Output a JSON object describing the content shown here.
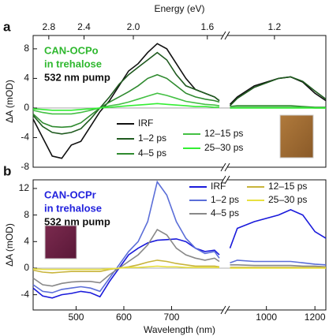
{
  "chart_data": [
    {
      "type": "line",
      "panel_label": "a",
      "x2label": "Energy (eV)",
      "x2ticks": [
        2.8,
        2.4,
        {
          "value": 2.0,
          "label": "2.0"
        },
        1.6,
        1.2
      ],
      "ylabel": "ΔA (mOD)",
      "xsegments": [
        [
          410,
          805
        ],
        [
          845,
          1245
        ]
      ],
      "ylim": [
        -8,
        9.8
      ],
      "yticks": [
        -8,
        -4,
        0,
        4,
        8
      ],
      "zero_line": true,
      "legend": "lower center",
      "annotations": [
        {
          "text": "CAN-OCPo",
          "color": "#2fb82f"
        },
        {
          "text": "in trehalose",
          "color": "#2fb82f"
        },
        {
          "text": "532 nm pump",
          "color": "#111111"
        }
      ],
      "x": [
        410,
        430,
        450,
        470,
        490,
        510,
        530,
        550,
        570,
        590,
        610,
        630,
        650,
        670,
        690,
        710,
        730,
        750,
        770,
        790,
        800,
        825,
        850,
        880,
        950,
        1050,
        1100,
        1150,
        1200,
        1245
      ],
      "series": [
        {
          "name": "IRF",
          "color": "#111111",
          "values": [
            -1.5,
            -4,
            -6.5,
            -6.8,
            -5,
            -4.5,
            -2.5,
            -0.5,
            1,
            3,
            5,
            6,
            7.5,
            8.7,
            8,
            6,
            4,
            2.5,
            2,
            1.5,
            1,
            null,
            0.5,
            1.5,
            3,
            4,
            4.2,
            3.5,
            2,
            1
          ]
        },
        {
          "name": "1–2 ps",
          "color": "#1f5a1f",
          "values": [
            -1,
            -2.5,
            -3.3,
            -3.5,
            -3.3,
            -2.8,
            -1.5,
            0,
            1.5,
            3.2,
            4.5,
            5.5,
            6.5,
            7.5,
            6.5,
            4.5,
            3,
            2.5,
            2,
            1.5,
            1,
            null,
            0.3,
            1.3,
            2.8,
            4,
            4.2,
            3.6,
            2.3,
            1.2
          ]
        },
        {
          "name": "4–5 ps",
          "color": "#2f8a2f",
          "values": [
            -0.8,
            -2,
            -2.5,
            -2.6,
            -2.5,
            -2,
            -1,
            0,
            0.8,
            1.5,
            2.2,
            3,
            4,
            4.5,
            4,
            3,
            2,
            1.5,
            1.2,
            1,
            0.8,
            null,
            0.2,
            0.3,
            0.3,
            0.3,
            0.3,
            0.2,
            0.1,
            0.1
          ]
        },
        {
          "name": "12–15 ps",
          "color": "#44c044",
          "values": [
            -0.3,
            -0.6,
            -0.8,
            -0.8,
            -0.8,
            -0.6,
            -0.3,
            0,
            0.3,
            0.5,
            0.8,
            1.2,
            1.6,
            2,
            1.7,
            1.3,
            0.9,
            0.7,
            0.5,
            0.4,
            0.3,
            null,
            0,
            0.1,
            0.1,
            0.1,
            0.1,
            0.1,
            0,
            0
          ]
        },
        {
          "name": "25–30 ps",
          "color": "#33ee33",
          "values": [
            -0.1,
            -0.2,
            -0.3,
            -0.3,
            -0.3,
            -0.2,
            -0.1,
            0,
            0.1,
            0.2,
            0.3,
            0.4,
            0.5,
            0.6,
            0.5,
            0.4,
            0.3,
            0.2,
            0.2,
            0.1,
            0.1,
            null,
            0,
            0,
            0,
            0,
            0,
            0,
            0,
            0
          ]
        }
      ]
    },
    {
      "type": "line",
      "panel_label": "b",
      "xlabel": "Wavelength (nm)",
      "xticks": [
        500,
        600,
        700,
        1000,
        1200
      ],
      "ylabel": "ΔA (mOD)",
      "xsegments": [
        [
          410,
          805
        ],
        [
          845,
          1245
        ]
      ],
      "ylim": [
        -6.3,
        13.3
      ],
      "yticks": [
        -4,
        0,
        4,
        8,
        12
      ],
      "zero_line": true,
      "legend": "upper right",
      "annotations": [
        {
          "text": "CAN-OCPr",
          "color": "#2222dd"
        },
        {
          "text": "in trehalose",
          "color": "#2222dd"
        },
        {
          "text": "532 nm pump",
          "color": "#111111"
        }
      ],
      "x": [
        410,
        430,
        450,
        470,
        490,
        510,
        530,
        550,
        570,
        590,
        610,
        630,
        650,
        670,
        690,
        710,
        730,
        750,
        770,
        790,
        800,
        825,
        850,
        880,
        950,
        1050,
        1100,
        1150,
        1200,
        1245
      ],
      "series": [
        {
          "name": "IRF",
          "color": "#1a1adb",
          "values": [
            -3,
            -4.2,
            -4.5,
            -4,
            -3.8,
            -3.5,
            -3.7,
            -4.3,
            -2,
            0,
            2,
            3,
            3.8,
            4.2,
            4.3,
            4.4,
            4,
            3,
            2.5,
            2.7,
            2,
            null,
            3,
            6,
            7,
            8,
            8.8,
            8,
            5.5,
            4.5
          ]
        },
        {
          "name": "1–2 ps",
          "color": "#5b6ed8",
          "values": [
            -2.5,
            -3.5,
            -3.7,
            -3.2,
            -3,
            -2.8,
            -3,
            -3.5,
            -1.5,
            0.5,
            2.5,
            4,
            7,
            13,
            11,
            7,
            4.5,
            3,
            2.2,
            2.5,
            1.5,
            null,
            0.8,
            1.2,
            1,
            1,
            1,
            0.8,
            0.6,
            0.5
          ]
        },
        {
          "name": "4–5 ps",
          "color": "#888888",
          "values": [
            -1.5,
            -2.5,
            -2.7,
            -2.3,
            -2.1,
            -2,
            -2,
            -2.2,
            -1,
            0,
            1,
            2,
            3.5,
            5.8,
            5,
            3,
            2,
            1.5,
            1.2,
            1.5,
            1,
            null,
            0.5,
            0.5,
            0.4,
            0.4,
            0.4,
            0.3,
            0.3,
            0.2
          ]
        },
        {
          "name": "12–15 ps",
          "color": "#c8b43a",
          "values": [
            -0.3,
            -0.6,
            -0.7,
            -0.6,
            -0.5,
            -0.5,
            -0.5,
            -0.5,
            -0.2,
            0,
            0.2,
            0.5,
            0.9,
            1.2,
            1,
            0.7,
            0.5,
            0.3,
            0.3,
            0.3,
            0.2,
            null,
            0.1,
            0.1,
            0.1,
            0.1,
            0.1,
            0.1,
            0.1,
            0.1
          ]
        },
        {
          "name": "25–30 ps",
          "color": "#e8e040",
          "values": [
            -0.1,
            -0.2,
            -0.2,
            -0.2,
            -0.2,
            -0.2,
            -0.2,
            -0.2,
            -0.1,
            0,
            0.1,
            0.1,
            0.2,
            0.3,
            0.2,
            0.2,
            0.1,
            0.1,
            0.1,
            0.1,
            0.1,
            null,
            0,
            0,
            0,
            0,
            0,
            0,
            0,
            0
          ]
        }
      ]
    }
  ]
}
